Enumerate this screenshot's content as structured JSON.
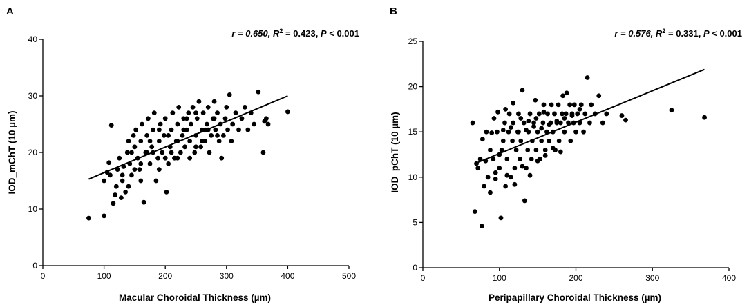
{
  "chart_data": [
    {
      "type": "scatter",
      "panel": "A",
      "stats": {
        "r": "r = 0.650, ",
        "r2pre": "R",
        "r2sup": "2",
        "r2post": " = 0.423, ",
        "p": "P",
        "ppost": " <  0.001"
      },
      "xlabel": "Macular Choroidal Thickness (µm)",
      "ylabel": "IOD_mChT (10 µm)",
      "xlim": [
        0,
        500
      ],
      "ylim": [
        0,
        40
      ],
      "xticks": [
        0,
        100,
        200,
        300,
        400,
        500
      ],
      "yticks": [
        0,
        10,
        20,
        30,
        40
      ],
      "fit": {
        "x": [
          75,
          400
        ],
        "y": [
          15.3,
          30.0
        ]
      },
      "points": [
        [
          75,
          8.4
        ],
        [
          100,
          8.8
        ],
        [
          112,
          24.8
        ],
        [
          100,
          15
        ],
        [
          105,
          16.5
        ],
        [
          108,
          18.2
        ],
        [
          110,
          16
        ],
        [
          115,
          11
        ],
        [
          118,
          12.5
        ],
        [
          120,
          14
        ],
        [
          122,
          17
        ],
        [
          125,
          19
        ],
        [
          128,
          12
        ],
        [
          130,
          15
        ],
        [
          132,
          17.5
        ],
        [
          135,
          13
        ],
        [
          138,
          20
        ],
        [
          140,
          22
        ],
        [
          142,
          18
        ],
        [
          145,
          16
        ],
        [
          148,
          23
        ],
        [
          150,
          21
        ],
        [
          152,
          24
        ],
        [
          155,
          19
        ],
        [
          158,
          17
        ],
        [
          160,
          22
        ],
        [
          162,
          25
        ],
        [
          165,
          11.2
        ],
        [
          168,
          20
        ],
        [
          170,
          23
        ],
        [
          172,
          26
        ],
        [
          175,
          18
        ],
        [
          178,
          21
        ],
        [
          180,
          24
        ],
        [
          182,
          27
        ],
        [
          185,
          15
        ],
        [
          188,
          19
        ],
        [
          190,
          22
        ],
        [
          192,
          25
        ],
        [
          195,
          20
        ],
        [
          198,
          23
        ],
        [
          200,
          26
        ],
        [
          202,
          13
        ],
        [
          205,
          18
        ],
        [
          208,
          21
        ],
        [
          210,
          24
        ],
        [
          212,
          27
        ],
        [
          215,
          19
        ],
        [
          218,
          22
        ],
        [
          220,
          25
        ],
        [
          222,
          28
        ],
        [
          225,
          20
        ],
        [
          228,
          23
        ],
        [
          230,
          26
        ],
        [
          232,
          21
        ],
        [
          235,
          24
        ],
        [
          238,
          27
        ],
        [
          240,
          22
        ],
        [
          242,
          25
        ],
        [
          245,
          28
        ],
        [
          248,
          20
        ],
        [
          250,
          23
        ],
        [
          252,
          26
        ],
        [
          255,
          29
        ],
        [
          258,
          21
        ],
        [
          260,
          24
        ],
        [
          262,
          27
        ],
        [
          265,
          22
        ],
        [
          268,
          25
        ],
        [
          270,
          28
        ],
        [
          272,
          20
        ],
        [
          275,
          23
        ],
        [
          278,
          26
        ],
        [
          280,
          29
        ],
        [
          282,
          24
        ],
        [
          285,
          27
        ],
        [
          288,
          22
        ],
        [
          290,
          25
        ],
        [
          292,
          19
        ],
        [
          295,
          23
        ],
        [
          298,
          26
        ],
        [
          300,
          28
        ],
        [
          302,
          24
        ],
        [
          305,
          30.2
        ],
        [
          308,
          22
        ],
        [
          310,
          25
        ],
        [
          315,
          27
        ],
        [
          320,
          24
        ],
        [
          325,
          26
        ],
        [
          330,
          28
        ],
        [
          335,
          24
        ],
        [
          340,
          27
        ],
        [
          345,
          25
        ],
        [
          352,
          30.7
        ],
        [
          360,
          20
        ],
        [
          362,
          25.5
        ],
        [
          365,
          26
        ],
        [
          368,
          25
        ],
        [
          400,
          27.2
        ],
        [
          130,
          16
        ],
        [
          145,
          20
        ],
        [
          160,
          18
        ],
        [
          175,
          22
        ],
        [
          190,
          17
        ],
        [
          205,
          23
        ],
        [
          220,
          19
        ],
        [
          235,
          26
        ],
        [
          250,
          21
        ],
        [
          265,
          24
        ],
        [
          280,
          26
        ],
        [
          150,
          17
        ],
        [
          170,
          20
        ],
        [
          190,
          24
        ],
        [
          210,
          20
        ],
        [
          230,
          24
        ],
        [
          250,
          27
        ],
        [
          270,
          24
        ],
        [
          140,
          14
        ],
        [
          160,
          15
        ],
        [
          180,
          20
        ],
        [
          200,
          19
        ],
        [
          220,
          22
        ],
        [
          240,
          19
        ],
        [
          260,
          22
        ],
        [
          285,
          23
        ]
      ]
    },
    {
      "type": "scatter",
      "panel": "B",
      "stats": {
        "r": "r = 0.576, ",
        "r2pre": "R",
        "r2sup": "2",
        "r2post": " = 0.331, ",
        "p": "P",
        "ppost": " <  0.001"
      },
      "xlabel": "Peripapillary Choroidal Thickness (µm)",
      "ylabel": "IOD_pChT (10 µm)",
      "xlim": [
        0,
        400
      ],
      "ylim": [
        0,
        25
      ],
      "xticks": [
        0,
        100,
        200,
        300,
        400
      ],
      "yticks": [
        0,
        5,
        10,
        15,
        20,
        25
      ],
      "fit": {
        "x": [
          68,
          368
        ],
        "y": [
          11.5,
          21.9
        ]
      },
      "points": [
        [
          65,
          16
        ],
        [
          68,
          6.2
        ],
        [
          70,
          11.5
        ],
        [
          72,
          11
        ],
        [
          75,
          12
        ],
        [
          77,
          4.6
        ],
        [
          80,
          9
        ],
        [
          82,
          11.8
        ],
        [
          85,
          10
        ],
        [
          88,
          13
        ],
        [
          90,
          14.9
        ],
        [
          92,
          12
        ],
        [
          95,
          10.5
        ],
        [
          97,
          15
        ],
        [
          100,
          11
        ],
        [
          102,
          5.5
        ],
        [
          103,
          13
        ],
        [
          105,
          14
        ],
        [
          107,
          16
        ],
        [
          108,
          9
        ],
        [
          110,
          12
        ],
        [
          112,
          15
        ],
        [
          113,
          17
        ],
        [
          115,
          10
        ],
        [
          117,
          14
        ],
        [
          118,
          16
        ],
        [
          120,
          11
        ],
        [
          122,
          13
        ],
        [
          124,
          15
        ],
        [
          125,
          17
        ],
        [
          127,
          12
        ],
        [
          128,
          14
        ],
        [
          130,
          19.6
        ],
        [
          132,
          16
        ],
        [
          133,
          7.4
        ],
        [
          135,
          11
        ],
        [
          137,
          13
        ],
        [
          138,
          15
        ],
        [
          140,
          17
        ],
        [
          142,
          12
        ],
        [
          143,
          14
        ],
        [
          145,
          16
        ],
        [
          147,
          18.5
        ],
        [
          148,
          13
        ],
        [
          150,
          15
        ],
        [
          152,
          17
        ],
        [
          153,
          12
        ],
        [
          155,
          14
        ],
        [
          157,
          16
        ],
        [
          158,
          18
        ],
        [
          160,
          13
        ],
        [
          162,
          15
        ],
        [
          163,
          17
        ],
        [
          165,
          14
        ],
        [
          167,
          16
        ],
        [
          168,
          18
        ],
        [
          170,
          15
        ],
        [
          172,
          17
        ],
        [
          173,
          13
        ],
        [
          175,
          16
        ],
        [
          177,
          18
        ],
        [
          178,
          14
        ],
        [
          180,
          16
        ],
        [
          182,
          17
        ],
        [
          183,
          19
        ],
        [
          185,
          15
        ],
        [
          187,
          17
        ],
        [
          188,
          19.3
        ],
        [
          190,
          16
        ],
        [
          192,
          18
        ],
        [
          193,
          14
        ],
        [
          195,
          17
        ],
        [
          197,
          16
        ],
        [
          198,
          18
        ],
        [
          200,
          15
        ],
        [
          202,
          17
        ],
        [
          205,
          16
        ],
        [
          207,
          18
        ],
        [
          210,
          15
        ],
        [
          212,
          17
        ],
        [
          215,
          21
        ],
        [
          218,
          16
        ],
        [
          220,
          18
        ],
        [
          225,
          17
        ],
        [
          230,
          19
        ],
        [
          235,
          16
        ],
        [
          240,
          17
        ],
        [
          260,
          16.8
        ],
        [
          265,
          16.3
        ],
        [
          325,
          17.4
        ],
        [
          368,
          16.6
        ],
        [
          88,
          8.3
        ],
        [
          95,
          9.8
        ],
        [
          100,
          12.5
        ],
        [
          110,
          10.2
        ],
        [
          120,
          9.2
        ],
        [
          130,
          11.2
        ],
        [
          140,
          10.2
        ],
        [
          150,
          11.8
        ],
        [
          160,
          12.4
        ],
        [
          170,
          13.2
        ],
        [
          180,
          12.8
        ],
        [
          105,
          15.2
        ],
        [
          115,
          15.5
        ],
        [
          125,
          15.0
        ],
        [
          135,
          15.2
        ],
        [
          145,
          15.6
        ],
        [
          155,
          15.4
        ],
        [
          165,
          15.8
        ],
        [
          175,
          16.2
        ],
        [
          185,
          16.5
        ],
        [
          195,
          16.8
        ],
        [
          205,
          17.5
        ],
        [
          78,
          14.2
        ],
        [
          83,
          15
        ],
        [
          93,
          16.5
        ],
        [
          98,
          17.2
        ],
        [
          108,
          17.5
        ],
        [
          118,
          18.2
        ],
        [
          128,
          16.5
        ],
        [
          138,
          16.2
        ],
        [
          148,
          16.5
        ],
        [
          158,
          17.2
        ]
      ]
    }
  ]
}
